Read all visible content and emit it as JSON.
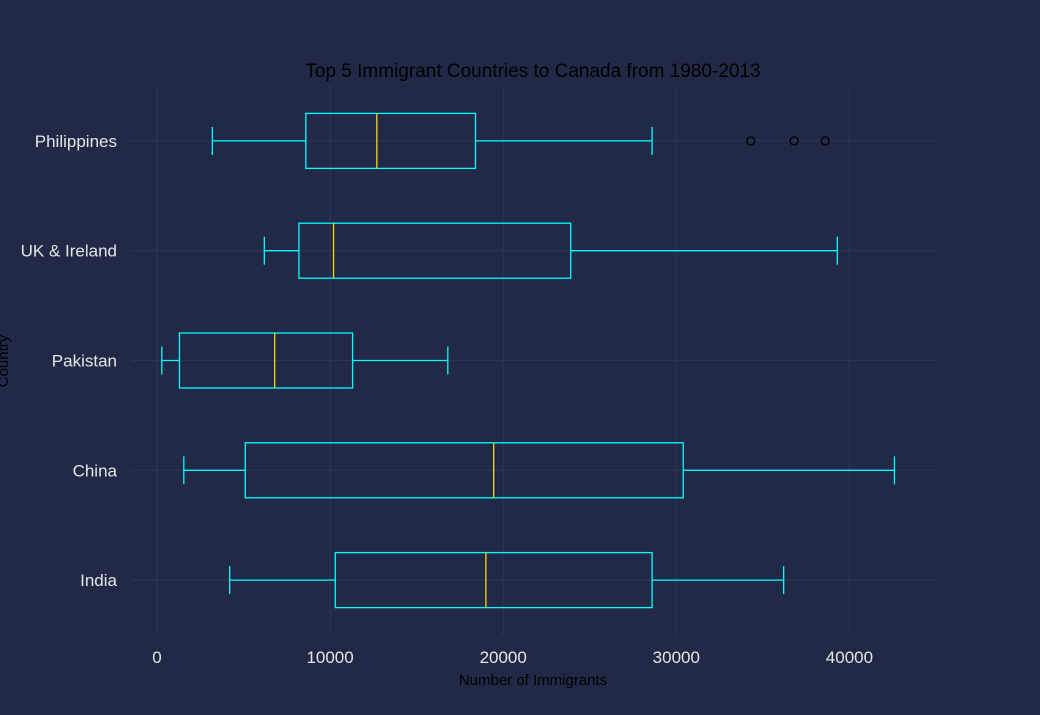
{
  "chart_data": {
    "type": "boxplot",
    "orientation": "horizontal",
    "title": "Top 5 Immigrant Countries to Canada from 1980-2013",
    "xlabel": "Number of Immigrants",
    "ylabel": "Country",
    "xlim": [
      -1500,
      45000
    ],
    "xticks": [
      0,
      10000,
      20000,
      30000,
      40000
    ],
    "grid": true,
    "categories": [
      "India",
      "China",
      "Pakistan",
      "UK & Ireland",
      "Philippines"
    ],
    "boxes": [
      {
        "category": "India",
        "whisker_low": 4200,
        "q1": 10300,
        "median": 19000,
        "q3": 28600,
        "whisker_high": 36200,
        "outliers": []
      },
      {
        "category": "China",
        "whisker_low": 1550,
        "q1": 5100,
        "median": 19450,
        "q3": 30400,
        "whisker_high": 42600,
        "outliers": []
      },
      {
        "category": "Pakistan",
        "whisker_low": 280,
        "q1": 1300,
        "median": 6800,
        "q3": 11300,
        "whisker_high": 16800,
        "outliers": []
      },
      {
        "category": "UK & Ireland",
        "whisker_low": 6200,
        "q1": 8200,
        "median": 10200,
        "q3": 23900,
        "whisker_high": 39300,
        "outliers": []
      },
      {
        "category": "Philippines",
        "whisker_low": 3200,
        "q1": 8600,
        "median": 12700,
        "q3": 18400,
        "whisker_high": 28600,
        "outliers": [
          34300,
          36800,
          38600
        ]
      }
    ],
    "colors": {
      "background": "#212946",
      "grid": "#2A3459",
      "box": "#00FFFF",
      "median": "#FFD700",
      "outlier": "#000000",
      "tick_text": "#E6E6E6",
      "title_text": "#000000"
    }
  }
}
